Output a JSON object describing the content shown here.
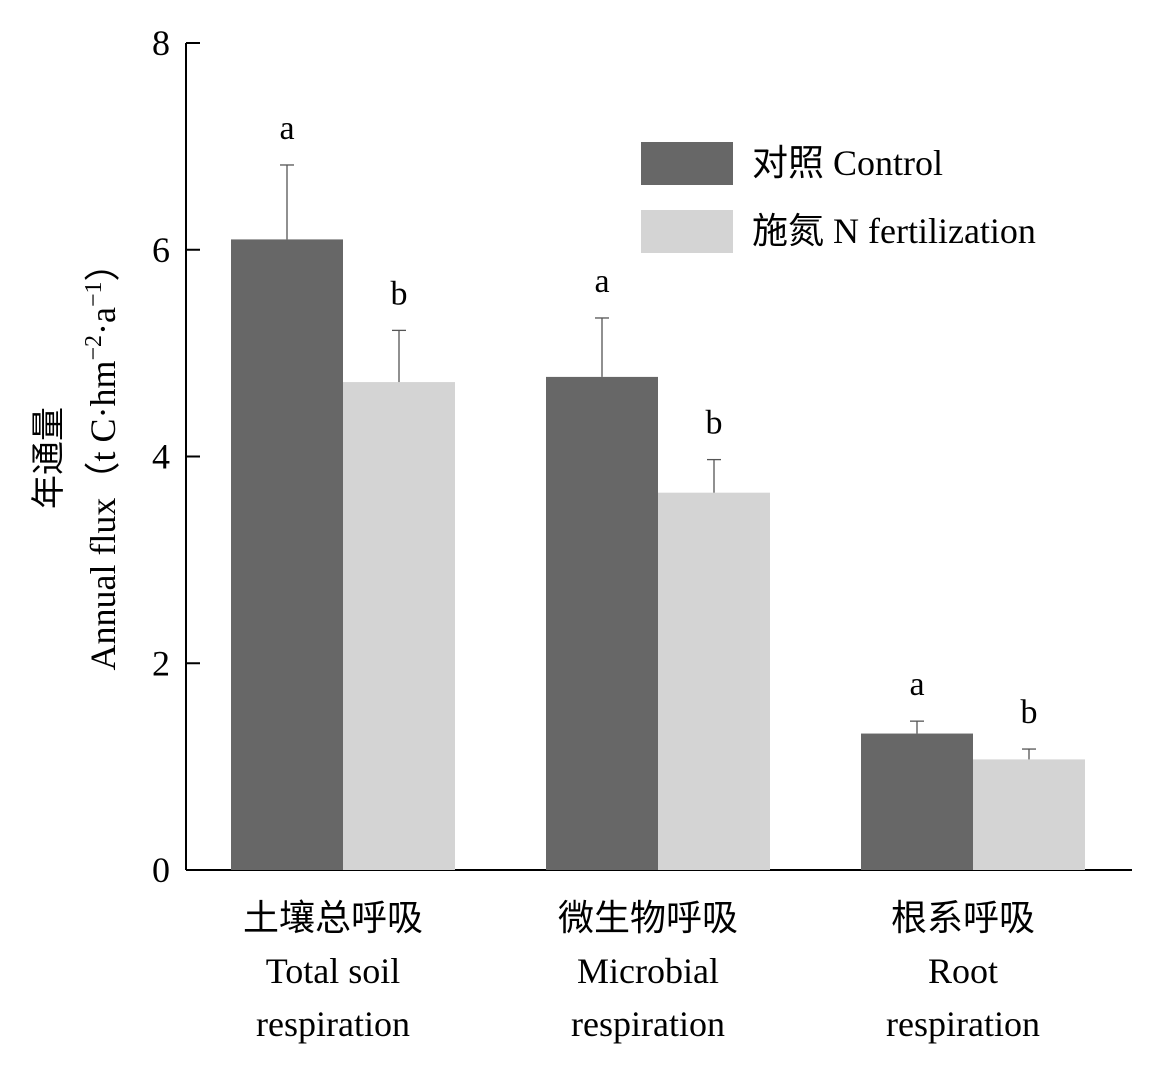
{
  "chart_data": {
    "type": "bar",
    "categories": [
      {
        "lines": [
          "土壤总呼吸",
          "Total soil",
          "respiration"
        ]
      },
      {
        "lines": [
          "微生物呼吸",
          "Microbial",
          "respiration"
        ]
      },
      {
        "lines": [
          "根系呼吸",
          "Root",
          "respiration"
        ]
      }
    ],
    "series": [
      {
        "name": "对照 Control",
        "color": "#676767",
        "values": [
          6.1,
          4.77,
          1.32
        ],
        "errors": [
          0.72,
          0.57,
          0.12
        ],
        "letters": [
          "a",
          "a",
          "a"
        ]
      },
      {
        "name": "施氮 N fertilization",
        "color": "#d4d4d4",
        "values": [
          4.72,
          3.65,
          1.07
        ],
        "errors": [
          0.5,
          0.32,
          0.1
        ],
        "letters": [
          "b",
          "b",
          "b"
        ]
      }
    ],
    "ylabel": {
      "zh": "年通量",
      "en_prefix": "Annual flux（t C·hm",
      "sup1": "−2",
      "mid": "·a",
      "sup2": "−1",
      "en_suffix": "）"
    },
    "xlabel": "",
    "ylim": [
      0,
      8
    ],
    "yticks": [
      "0",
      "2",
      "4",
      "6",
      "8"
    ],
    "legend_position": "top-right",
    "grid": false
  }
}
